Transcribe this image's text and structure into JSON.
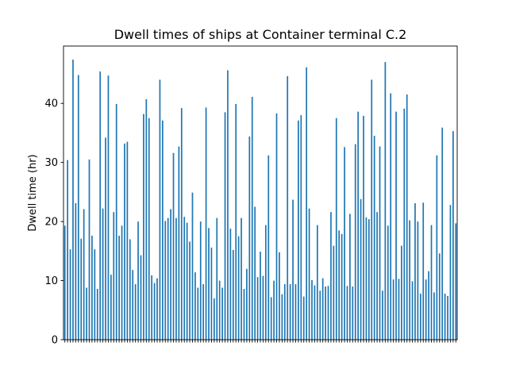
{
  "chart_data": {
    "type": "bar",
    "title": "Dwell times of ships at Container terminal C.2",
    "xlabel": "",
    "ylabel": "Dwell time (hr)",
    "ylim": [
      0,
      49.7
    ],
    "yticks": [
      0,
      10,
      20,
      30,
      40
    ],
    "grid": false,
    "legend": "none",
    "bar_color": "#1f77b4",
    "values": [
      19.3,
      30.4,
      15.3,
      47.4,
      23.1,
      44.8,
      17.1,
      22.1,
      8.8,
      30.5,
      17.6,
      15.3,
      8.6,
      45.4,
      22.2,
      34.2,
      44.7,
      11.0,
      21.6,
      39.9,
      17.6,
      19.3,
      33.2,
      33.5,
      17.0,
      11.8,
      9.4,
      20.0,
      14.3,
      38.2,
      40.7,
      37.5,
      10.9,
      9.6,
      10.4,
      44.0,
      37.1,
      20.1,
      20.6,
      22.1,
      31.6,
      20.6,
      32.7,
      39.2,
      20.8,
      19.8,
      16.6,
      24.9,
      11.4,
      8.8,
      20.0,
      9.4,
      39.3,
      18.9,
      15.6,
      7.0,
      20.6,
      10.0,
      8.8,
      38.5,
      45.6,
      18.8,
      15.2,
      39.9,
      17.5,
      20.6,
      8.6,
      12.0,
      34.4,
      41.1,
      22.5,
      10.6,
      14.9,
      10.8,
      19.4,
      31.2,
      7.2,
      10.0,
      38.3,
      14.8,
      7.7,
      9.4,
      44.6,
      9.4,
      23.7,
      9.4,
      37.1,
      38.0,
      7.3,
      46.1,
      22.2,
      10.1,
      9.2,
      19.4,
      8.3,
      10.4,
      9.0,
      9.1,
      21.6,
      15.9,
      37.5,
      18.5,
      17.9,
      32.6,
      9.1,
      21.3,
      9.0,
      33.1,
      38.6,
      23.8,
      37.9,
      20.7,
      20.4,
      44.0,
      34.5,
      21.6,
      32.7,
      8.3,
      47.0,
      19.3,
      41.7,
      10.2,
      38.6,
      10.3,
      15.9,
      39.1,
      41.5,
      20.2,
      9.9,
      23.1,
      20.0,
      7.8,
      23.2,
      10.2,
      11.6,
      19.4,
      8.0,
      31.2,
      14.6,
      35.9,
      7.8,
      7.4,
      22.8,
      35.3,
      19.7
    ]
  }
}
